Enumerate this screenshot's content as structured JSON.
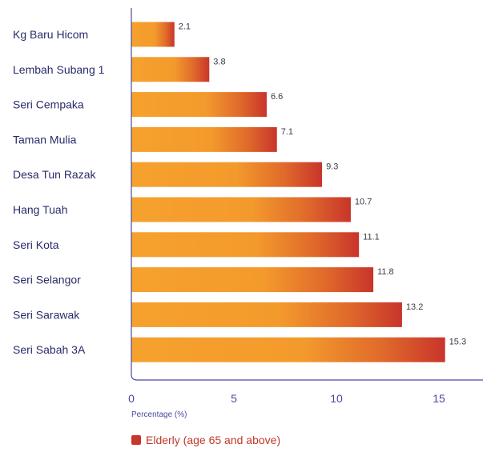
{
  "chart_data": {
    "type": "bar",
    "orientation": "horizontal",
    "categories": [
      "Kg Baru Hicom",
      "Lembah Subang 1",
      "Seri Cempaka",
      "Taman Mulia",
      "Desa Tun Razak",
      "Hang Tuah",
      "Seri Kota",
      "Seri Selangor",
      "Seri Sarawak",
      "Seri Sabah 3A"
    ],
    "series": [
      {
        "name": "Elderly (age 65 and above)",
        "values": [
          2.1,
          3.8,
          6.6,
          7.1,
          9.3,
          10.7,
          11.1,
          11.8,
          13.2,
          15.3
        ]
      }
    ],
    "data_labels": [
      "2.1",
      "3.8",
      "6.6",
      "7.1",
      "9.3",
      "10.7",
      "11.1",
      "11.8",
      "13.2",
      "15.3"
    ],
    "xlabel": "Percentage (%)",
    "xlim": [
      0,
      17
    ],
    "xticks": [
      "0",
      "5",
      "10",
      "15"
    ],
    "grid": false,
    "legend_position": "bottom-left",
    "colors": {
      "bar_start": "#f6a12e",
      "bar_end": "#c8352b",
      "axis": "#4a4aa0",
      "legend_swatch": "#c8352b"
    }
  }
}
